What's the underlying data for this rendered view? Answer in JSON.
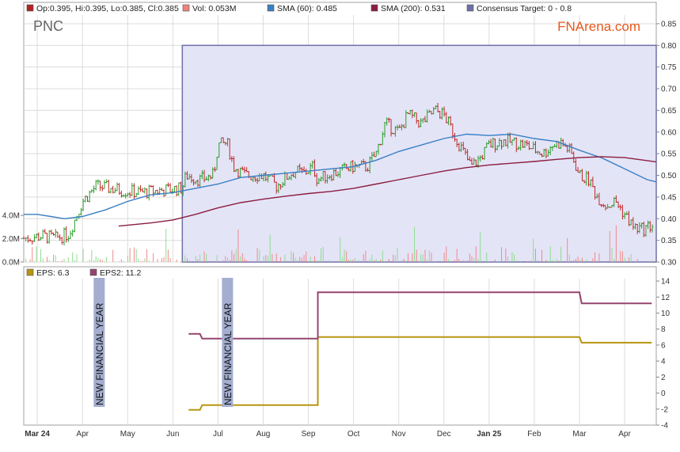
{
  "ticker": "PNC",
  "brand": "FNArena.com",
  "colors": {
    "sma60": "#3a7fc4",
    "sma200": "#8b1e3f",
    "target": "#6f6fa6",
    "target_fill": "#e4e4f7",
    "up": "#2a9d2a",
    "down": "#c02828",
    "eps": "#b8950f",
    "eps2": "#94456f",
    "vol_up": "#8fdc8f",
    "vol_down": "#f08a8a",
    "marker": "#a3aed0"
  },
  "legend_top": [
    {
      "text": "Op:0.395, Hi:0.395, Lo:0.385, Cl:0.385",
      "color": "#b22222"
    },
    {
      "text": "Vol: 0.053M",
      "color": "#f08080"
    },
    {
      "text": "SMA (60): 0.485",
      "color": "#3a7fc4"
    },
    {
      "text": "SMA (200): 0.531",
      "color": "#8b1e3f"
    },
    {
      "text": "Consensus Target: 0 - 0.8",
      "color": "#6f6fa6"
    }
  ],
  "legend_bottom": [
    {
      "text": "EPS: 6.3",
      "color": "#b8950f"
    },
    {
      "text": "EPS2: 11.2",
      "color": "#94456f"
    }
  ],
  "markers": [
    {
      "label": "NEW FINANCIAL YEAR",
      "x": 1.37
    },
    {
      "label": "NEW FINANCIAL YEAR",
      "x": 4.21
    }
  ],
  "chart_data": [
    {
      "type": "line",
      "panel": "price",
      "x_categories": [
        "Mar 24",
        "Apr",
        "May",
        "Jun",
        "Jul",
        "Aug",
        "Sep",
        "Oct",
        "Nov",
        "Dec",
        "Jan 25",
        "Feb",
        "Mar",
        "Apr"
      ],
      "x_range": [
        -0.3,
        13.7
      ],
      "y_ticks": [
        0.3,
        0.35,
        0.4,
        0.45,
        0.5,
        0.55,
        0.6,
        0.65,
        0.7,
        0.75,
        0.8,
        0.85
      ],
      "ylim": [
        0.3,
        0.87
      ],
      "volume_ticks": [
        "4.0M",
        "2.0M",
        "0.0M"
      ],
      "volume_max": 5.5,
      "consensus_target": {
        "low": 0,
        "high": 0.8,
        "start_x": 3.21
      },
      "price_path": [
        [
          -0.3,
          0.355
        ],
        [
          0.1,
          0.36
        ],
        [
          0.4,
          0.355
        ],
        [
          0.7,
          0.365
        ],
        [
          1.0,
          0.44
        ],
        [
          1.3,
          0.475
        ],
        [
          1.6,
          0.47
        ],
        [
          1.9,
          0.465
        ],
        [
          2.3,
          0.46
        ],
        [
          2.7,
          0.465
        ],
        [
          3.0,
          0.468
        ],
        [
          3.2,
          0.47
        ],
        [
          3.3,
          0.5
        ],
        [
          3.6,
          0.49
        ],
        [
          3.9,
          0.5
        ],
        [
          4.0,
          0.57
        ],
        [
          4.2,
          0.575
        ],
        [
          4.35,
          0.52
        ],
        [
          4.6,
          0.5
        ],
        [
          5.0,
          0.5
        ],
        [
          5.3,
          0.475
        ],
        [
          5.5,
          0.495
        ],
        [
          5.7,
          0.51
        ],
        [
          5.9,
          0.505
        ],
        [
          6.1,
          0.52
        ],
        [
          6.2,
          0.49
        ],
        [
          6.4,
          0.5
        ],
        [
          6.7,
          0.51
        ],
        [
          7.0,
          0.52
        ],
        [
          7.3,
          0.52
        ],
        [
          7.5,
          0.55
        ],
        [
          7.7,
          0.62
        ],
        [
          8.0,
          0.6
        ],
        [
          8.2,
          0.64
        ],
        [
          8.5,
          0.62
        ],
        [
          8.8,
          0.65
        ],
        [
          9.0,
          0.64
        ],
        [
          9.2,
          0.6
        ],
        [
          9.4,
          0.56
        ],
        [
          9.6,
          0.52
        ],
        [
          9.8,
          0.54
        ],
        [
          10.0,
          0.57
        ],
        [
          10.3,
          0.58
        ],
        [
          10.6,
          0.575
        ],
        [
          10.8,
          0.57
        ],
        [
          11.0,
          0.56
        ],
        [
          11.2,
          0.55
        ],
        [
          11.4,
          0.57
        ],
        [
          11.6,
          0.575
        ],
        [
          11.8,
          0.555
        ],
        [
          12.0,
          0.5
        ],
        [
          12.2,
          0.49
        ],
        [
          12.4,
          0.45
        ],
        [
          12.6,
          0.43
        ],
        [
          12.8,
          0.44
        ],
        [
          13.0,
          0.41
        ],
        [
          13.2,
          0.38
        ],
        [
          13.4,
          0.375
        ],
        [
          13.6,
          0.385
        ]
      ],
      "series": [
        {
          "name": "SMA (60)",
          "points": [
            [
              -0.3,
              0.41
            ],
            [
              0.0,
              0.41
            ],
            [
              0.3,
              0.405
            ],
            [
              0.6,
              0.4
            ],
            [
              1.0,
              0.405
            ],
            [
              1.5,
              0.42
            ],
            [
              2.0,
              0.44
            ],
            [
              2.5,
              0.455
            ],
            [
              3.0,
              0.46
            ],
            [
              3.5,
              0.47
            ],
            [
              4.0,
              0.48
            ],
            [
              4.5,
              0.495
            ],
            [
              5.0,
              0.5
            ],
            [
              5.5,
              0.505
            ],
            [
              6.0,
              0.51
            ],
            [
              6.5,
              0.515
            ],
            [
              7.0,
              0.52
            ],
            [
              7.5,
              0.535
            ],
            [
              8.0,
              0.555
            ],
            [
              8.5,
              0.57
            ],
            [
              9.0,
              0.585
            ],
            [
              9.5,
              0.595
            ],
            [
              10.0,
              0.592
            ],
            [
              10.5,
              0.595
            ],
            [
              11.0,
              0.585
            ],
            [
              11.5,
              0.578
            ],
            [
              12.0,
              0.558
            ],
            [
              12.5,
              0.54
            ],
            [
              13.0,
              0.515
            ],
            [
              13.5,
              0.49
            ],
            [
              13.7,
              0.485
            ]
          ]
        },
        {
          "name": "SMA (200)",
          "points": [
            [
              1.8,
              0.383
            ],
            [
              2.5,
              0.39
            ],
            [
              3.0,
              0.397
            ],
            [
              3.5,
              0.41
            ],
            [
              4.0,
              0.425
            ],
            [
              4.5,
              0.437
            ],
            [
              5.0,
              0.445
            ],
            [
              5.5,
              0.452
            ],
            [
              6.0,
              0.458
            ],
            [
              6.5,
              0.463
            ],
            [
              7.0,
              0.47
            ],
            [
              7.5,
              0.48
            ],
            [
              8.0,
              0.49
            ],
            [
              8.5,
              0.5
            ],
            [
              9.0,
              0.51
            ],
            [
              9.5,
              0.518
            ],
            [
              10.0,
              0.524
            ],
            [
              10.5,
              0.528
            ],
            [
              11.0,
              0.532
            ],
            [
              11.5,
              0.537
            ],
            [
              12.0,
              0.541
            ],
            [
              12.5,
              0.543
            ],
            [
              13.0,
              0.541
            ],
            [
              13.5,
              0.534
            ],
            [
              13.7,
              0.531
            ]
          ]
        }
      ]
    },
    {
      "type": "line",
      "panel": "eps",
      "x_range": [
        -0.3,
        13.7
      ],
      "y_ticks": [
        -4,
        -2,
        0,
        2,
        4,
        6,
        8,
        10,
        12,
        14
      ],
      "ylim": [
        -4,
        14.3
      ],
      "series": [
        {
          "name": "EPS",
          "points": [
            [
              3.35,
              -2.1
            ],
            [
              3.6,
              -2.1
            ],
            [
              3.65,
              -1.5
            ],
            [
              6.21,
              -1.5
            ],
            [
              6.21,
              7.0
            ],
            [
              12.0,
              7.0
            ],
            [
              12.05,
              6.3
            ],
            [
              13.6,
              6.3
            ]
          ]
        },
        {
          "name": "EPS2",
          "points": [
            [
              3.35,
              7.4
            ],
            [
              3.6,
              7.4
            ],
            [
              3.65,
              6.8
            ],
            [
              6.21,
              6.8
            ],
            [
              6.21,
              12.6
            ],
            [
              12.0,
              12.6
            ],
            [
              12.05,
              11.2
            ],
            [
              13.6,
              11.2
            ]
          ]
        }
      ]
    }
  ]
}
